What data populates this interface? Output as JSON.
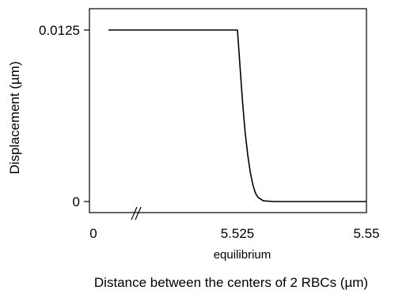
{
  "chart_data": {
    "type": "line",
    "title": "",
    "xlabel": "Distance between the centers of 2 RBCs (µm)",
    "ylabel": "Displacement (µm)",
    "x_axis_break": true,
    "x_ticks": [
      {
        "value": 0,
        "label": "0"
      },
      {
        "value": 5.525,
        "label": "5.525"
      },
      {
        "value": 5.55,
        "label": "5.55"
      }
    ],
    "x_annotation": "equilibrium",
    "y_ticks": [
      {
        "value": 0,
        "label": "0"
      },
      {
        "value": 0.0125,
        "label": "0.0125"
      }
    ],
    "xlim": [
      5.5,
      5.55
    ],
    "ylim": [
      -0.001,
      0.0143
    ],
    "grid": false,
    "legend": "none",
    "series": [
      {
        "points": [
          [
            5.5,
            0.0125
          ],
          [
            5.525,
            0.0125
          ],
          [
            5.5255,
            0.0098
          ],
          [
            5.526,
            0.0072
          ],
          [
            5.5265,
            0.005
          ],
          [
            5.527,
            0.0034
          ],
          [
            5.5275,
            0.0021
          ],
          [
            5.528,
            0.0012
          ],
          [
            5.5285,
            0.0006
          ],
          [
            5.529,
            0.0003
          ],
          [
            5.53,
            5e-05
          ],
          [
            5.532,
            0.0
          ],
          [
            5.55,
            0.0
          ]
        ]
      }
    ]
  }
}
